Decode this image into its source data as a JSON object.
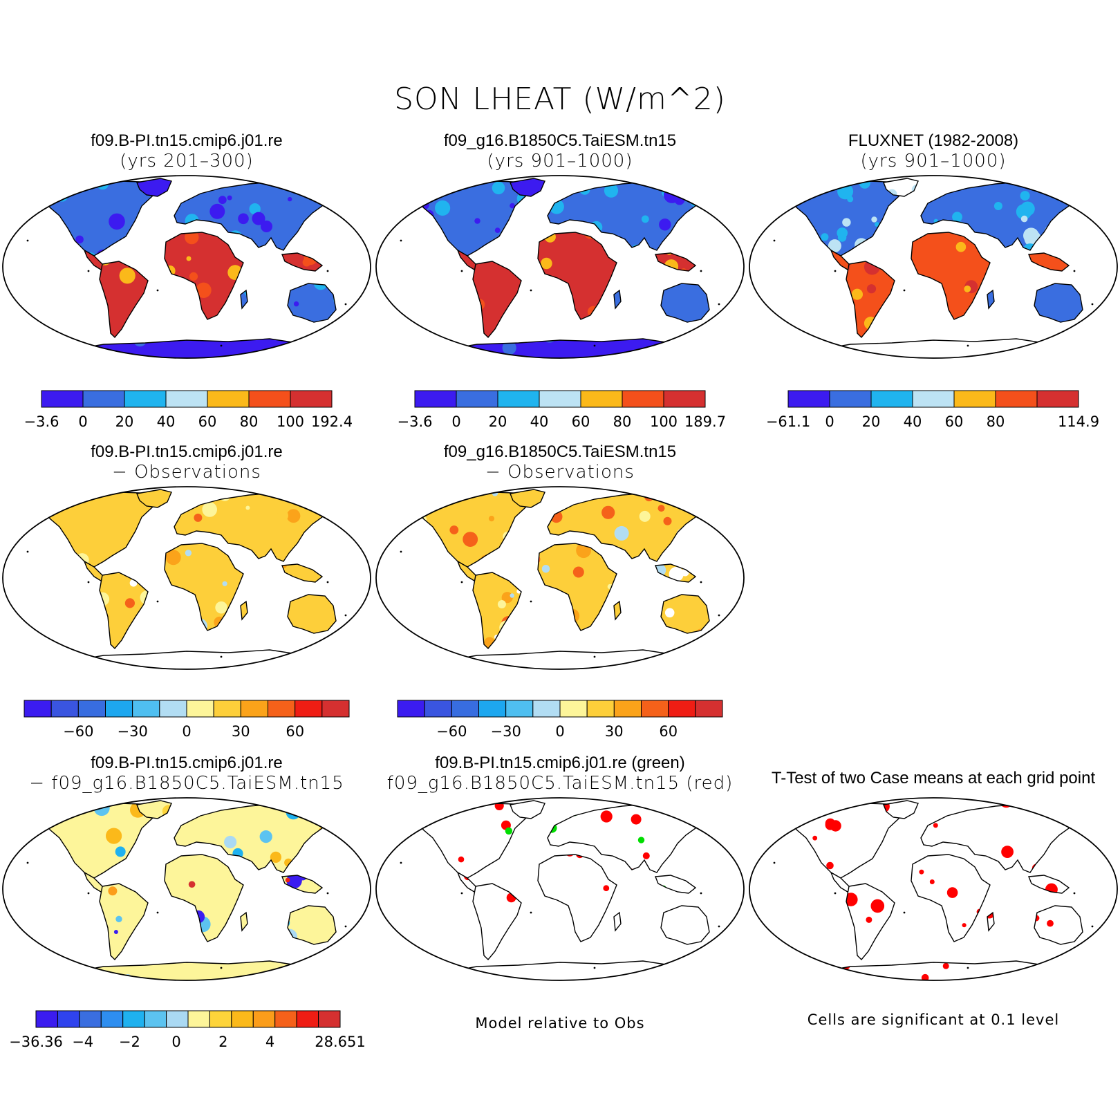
{
  "title": "SON LHEAT (W/m^2)",
  "legend_note_left": "Model relative to Obs",
  "legend_note_right": "Cells are significant at 0.1 level",
  "colors": {
    "land_model": [
      "#3c1bf0",
      "#3a6ee0",
      "#20b4ef",
      "#bde3f4",
      "#fbb91a",
      "#f4501b",
      "#d53030"
    ],
    "diff": [
      "#3b1cf0",
      "#3a55e0",
      "#386de0",
      "#1da7ef",
      "#4fbff0",
      "#b2ddf3",
      "#fdf59a",
      "#fdcf3a",
      "#fba31a",
      "#f5611a",
      "#ef1d14",
      "#d53030"
    ],
    "diff3": [
      "#3b1cf0",
      "#2f43ee",
      "#3a6ee0",
      "#2e8ef0",
      "#1fb1ef",
      "#5cc3f0",
      "#aad9f3",
      "#fdf59a",
      "#fdd43a",
      "#fbb91a",
      "#fb9d1a",
      "#f5611a",
      "#ef1d14",
      "#d53030"
    ],
    "sig_red": "#ff0000",
    "sig_green": "#00dd00"
  },
  "panels": [
    {
      "id": "p1",
      "title1": "f09.B-PI.tn15.cmip6.j01.re",
      "title2": "(yrs 201–300)",
      "style": "model",
      "antarctica": true,
      "cbar": {
        "palette": "land_model",
        "labels": [
          "−3.6",
          "0",
          "20",
          "40",
          "60",
          "80",
          "100",
          "192.4"
        ]
      }
    },
    {
      "id": "p2",
      "title1": "f09_g16.B1850C5.TaiESM.tn15",
      "title2": "(yrs 901–1000)",
      "style": "model",
      "antarctica": true,
      "cbar": {
        "palette": "land_model",
        "labels": [
          "−3.6",
          "0",
          "20",
          "40",
          "60",
          "80",
          "100",
          "189.7"
        ]
      }
    },
    {
      "id": "p3",
      "title1": "FLUXNET (1982-2008)",
      "title2": "(yrs 901–1000)",
      "style": "obs",
      "antarctica": false,
      "cbar": {
        "palette": "land_model",
        "labels": [
          "−61.1",
          "0",
          "20",
          "40",
          "60",
          "80",
          "",
          "114.9"
        ]
      }
    },
    {
      "id": "p4",
      "title1": "f09.B-PI.tn15.cmip6.j01.re",
      "title2": "− Observations",
      "style": "diffobs",
      "antarctica": false,
      "cbar": {
        "palette": "diff",
        "labels": [
          "",
          "−60",
          "",
          "−30",
          "",
          "0",
          "",
          "30",
          "",
          "60",
          ""
        ]
      }
    },
    {
      "id": "p5",
      "title1": "f09_g16.B1850C5.TaiESM.tn15",
      "title2": "− Observations",
      "style": "diffobs",
      "antarctica": false,
      "cbar": {
        "palette": "diff",
        "labels": [
          "",
          "−60",
          "",
          "−30",
          "",
          "0",
          "",
          "30",
          "",
          "60",
          ""
        ]
      }
    },
    {
      "id": "p7",
      "title1": "f09.B-PI.tn15.cmip6.j01.re",
      "title2": "− f09_g16.B1850C5.TaiESM.tn15",
      "style": "diffcase",
      "antarctica": true,
      "cbar": {
        "palette": "diff3",
        "labels": [
          "−36.36",
          "",
          "−4",
          "",
          "−2",
          "",
          "0",
          "",
          "2",
          "",
          "4",
          "",
          "",
          "28.651"
        ]
      }
    },
    {
      "id": "p8",
      "title1": "f09.B-PI.tn15.cmip6.j01.re (green)",
      "title2": "f09_g16.B1850C5.TaiESM.tn15 (red)",
      "style": "greenred",
      "antarctica": false,
      "cbar": null
    },
    {
      "id": "p9",
      "title1": "T-Test of two Case means at each grid point",
      "title2": "",
      "style": "ttest",
      "antarctica": true,
      "cbar": null
    }
  ]
}
